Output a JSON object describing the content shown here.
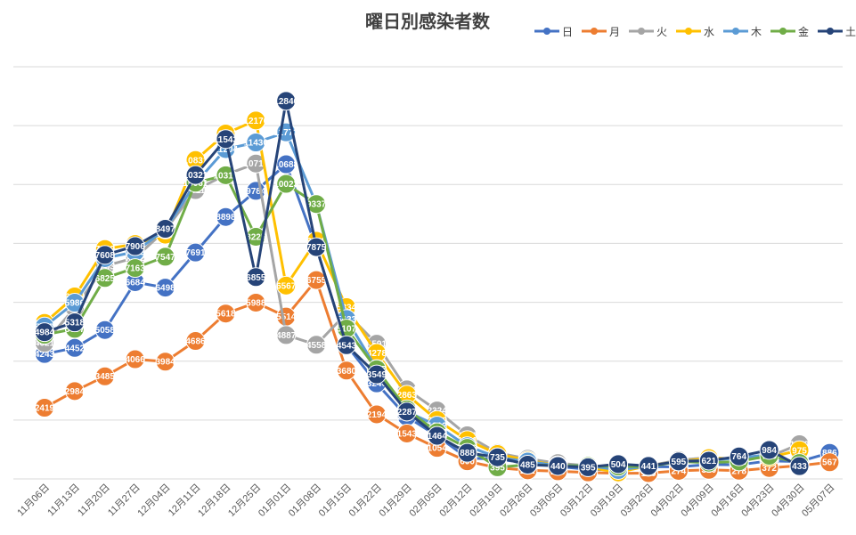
{
  "chart_data": {
    "type": "line",
    "title": "曜日別感染者数",
    "xlabel": "",
    "ylabel": "",
    "ylim": [
      0,
      14000
    ],
    "grid": true,
    "legend_position": "top-right",
    "categories": [
      "11月06日",
      "11月13日",
      "11月20日",
      "11月27日",
      "12月04日",
      "12月11日",
      "12月18日",
      "12月25日",
      "01月01日",
      "01月08日",
      "01月15日",
      "01月22日",
      "01月29日",
      "02月05日",
      "02月12日",
      "02月19日",
      "02月26日",
      "03月05日",
      "03月12日",
      "03月19日",
      "03月26日",
      "04月02日",
      "04月09日",
      "04月16日",
      "04月23日",
      "04月30日",
      "05月07日"
    ],
    "series": [
      {
        "name": "日",
        "color": "#4472C4",
        "values": [
          4243,
          4452,
          5058,
          6684,
          6498,
          7691,
          8898,
          9784,
          10688,
          7875,
          4541,
          3246,
          2114,
          1464,
          712,
          667,
          545,
          422,
          323,
          311,
          413,
          408,
          489,
          477,
          613,
          591,
          886
        ]
      },
      {
        "name": "月",
        "color": "#ED7D31",
        "values": [
          2419,
          2984,
          3485,
          4066,
          3984,
          4686,
          5618,
          5988,
          5514,
          6755,
          3680,
          2194,
          1543,
          1054,
          600,
          379,
          292,
          259,
          222,
          190,
          198,
          274,
          310,
          278,
          372,
          452,
          567
        ]
      },
      {
        "name": "火",
        "color": "#A5A5A5",
        "values": [
          4621,
          5807,
          7233,
          7512,
          8451,
          9811,
          10331,
          10713,
          4887,
          4558,
          5634,
          4591,
          3044,
          2324,
          1482,
          882,
          685,
          536,
          449,
          385,
          445,
          637,
          725,
          669,
          755,
          1179,
          null
        ]
      },
      {
        "name": "水",
        "color": "#FFC000",
        "values": [
          5299,
          6198,
          7809,
          7978,
          8297,
          10831,
          11731,
          12176,
          6567,
          8088,
          5834,
          4278,
          2863,
          2000,
          1321,
          846,
          628,
          460,
          396,
          220,
          448,
          590,
          706,
          684,
          733,
          975,
          null
        ]
      },
      {
        "name": "木",
        "color": "#5B9BD5",
        "values": [
          5177,
          5986,
          7500,
          7713,
          8473,
          10047,
          11204,
          11430,
          11773,
          9337,
          5433,
          3736,
          2288,
          1812,
          1113,
          736,
          589,
          455,
          455,
          304,
          433,
          596,
          631,
          713,
          823,
          null,
          null
        ]
      },
      {
        "name": "金",
        "color": "#70AD47",
        "values": [
          4897,
          5097,
          6825,
          7163,
          7547,
          10061,
          10316,
          8225,
          10023,
          9337,
          5107,
          3727,
          2364,
          1584,
          1053,
          395,
          481,
          456,
          440,
          422,
          413,
          592,
          553,
          594,
          788,
          542,
          null
        ]
      },
      {
        "name": "土",
        "color": "#264478",
        "values": [
          4984,
          5318,
          7608,
          7906,
          8497,
          10321,
          11543,
          6855,
          12840,
          7875,
          4543,
          3549,
          2287,
          1464,
          888,
          735,
          485,
          440,
          395,
          504,
          441,
          595,
          621,
          764,
          984,
          433,
          null
        ]
      }
    ],
    "visible_label_rows": {
      "日": [
        4243,
        4452,
        5058,
        6684,
        6498,
        7691,
        8898,
        9784,
        10688,
        7875,
        4541,
        3246,
        2114,
        1464,
        712,
        667,
        545,
        422,
        323,
        311,
        413,
        408,
        489,
        477,
        613,
        591,
        886
      ],
      "月": [
        2419,
        2984,
        3485,
        4066,
        3984,
        4686,
        5618,
        5988,
        5514,
        6755,
        3680,
        2194,
        1543,
        1054,
        600,
        379,
        292,
        259,
        222,
        190,
        198,
        274,
        310,
        278,
        372,
        452,
        567
      ]
    }
  }
}
